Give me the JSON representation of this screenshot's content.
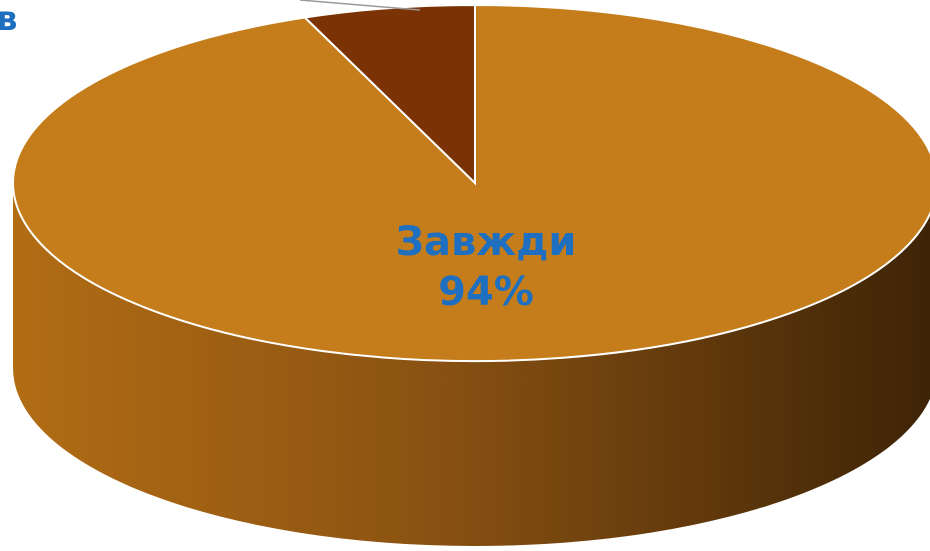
{
  "chart_data": {
    "type": "pie",
    "title": "",
    "slices": [
      {
        "label": "Завжди",
        "value": 94,
        "value_text": "94%",
        "color": "#c47d1a",
        "side_color": "#a2620e"
      },
      {
        "label": "",
        "value": 6,
        "value_text": "",
        "color": "#7b3205",
        "side_color": "#5a2403"
      }
    ],
    "edge_label": "в",
    "legend": "none"
  }
}
